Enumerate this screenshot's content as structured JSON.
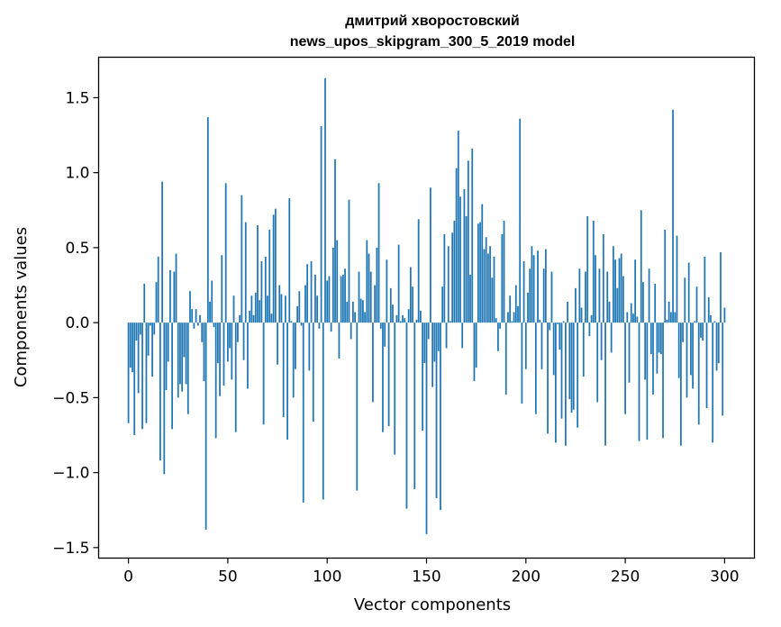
{
  "chart_data": {
    "type": "bar",
    "title_line1": "дмитрий хворостовский",
    "title_line2": "news_upos_skipgram_300_5_2019 model",
    "xlabel": "Vector components",
    "ylabel": "Components values",
    "xlim": [
      -15,
      315
    ],
    "ylim": [
      -1.57,
      1.77
    ],
    "xticks": [
      0,
      50,
      100,
      150,
      200,
      250,
      300
    ],
    "xtick_labels": [
      "0",
      "50",
      "100",
      "150",
      "200",
      "250",
      "300"
    ],
    "yticks": [
      1.5,
      1.0,
      0.5,
      0.0,
      -0.5,
      -1.0,
      -1.5
    ],
    "ytick_labels": [
      "1.5",
      "1.0",
      "0.5",
      "0.0",
      "−0.5",
      "−1.0",
      "−1.5"
    ],
    "grid": false,
    "bar_color": "#1f77b4",
    "values": [
      -0.67,
      -0.3,
      -0.33,
      -0.75,
      -0.12,
      -0.47,
      -0.08,
      -0.71,
      0.26,
      -0.67,
      -0.22,
      -0.02,
      -0.36,
      -0.08,
      0.27,
      0.44,
      -0.92,
      0.94,
      -1.01,
      -0.45,
      -0.26,
      0.35,
      -0.71,
      0.34,
      0.46,
      -0.5,
      -0.41,
      -0.46,
      -0.23,
      -0.41,
      -0.61,
      0.21,
      0.09,
      -0.04,
      0.09,
      -0.02,
      0.05,
      -0.13,
      -0.39,
      -1.38,
      1.37,
      0.14,
      0.28,
      -0.03,
      -0.77,
      -0.27,
      -0.49,
      0.45,
      -0.42,
      0.93,
      -0.26,
      -0.17,
      -0.38,
      0.18,
      -0.73,
      -0.13,
      0.05,
      0.85,
      -0.25,
      0.67,
      -0.44,
      0.08,
      0.18,
      0.05,
      0.2,
      0.65,
      0.15,
      0.41,
      -0.68,
      0.44,
      0.18,
      0.62,
      0.06,
      0.72,
      0.76,
      -0.28,
      0.25,
      0.19,
      -0.63,
      0.18,
      -0.78,
      0.83,
      0.01,
      -0.5,
      -0.31,
      0.11,
      0.21,
      -0.02,
      -1.2,
      0.25,
      0.39,
      -0.32,
      0.41,
      -0.66,
      0.32,
      0.18,
      -0.04,
      1.31,
      -1.18,
      1.63,
      0.28,
      0.31,
      -0.06,
      0.5,
      1.09,
      0.55,
      -0.24,
      0.31,
      0.32,
      0.36,
      0.14,
      0.82,
      -0.11,
      0.14,
      0.07,
      -1.12,
      0.34,
      0.16,
      0.15,
      0.07,
      0.55,
      0.46,
      0.34,
      -0.53,
      0.25,
      0.5,
      0.93,
      -0.04,
      -0.73,
      -0.16,
      0.42,
      -0.69,
      0.23,
      0.12,
      -0.88,
      0.05,
      0.52,
      0.01,
      0.05,
      0.03,
      -1.24,
      0.09,
      0.37,
      0.24,
      -1.11,
      0.02,
      0.69,
      0.08,
      -0.72,
      -0.27,
      -1.41,
      -0.11,
      0.9,
      -0.43,
      -0.26,
      -1.17,
      -0.19,
      -1.25,
      0.24,
      0.59,
      -0.17,
      0.51,
      0.01,
      0.6,
      0.68,
      1.03,
      1.28,
      0.84,
      -0.17,
      0.89,
      0.71,
      1.08,
      0.32,
      1.16,
      -0.39,
      -0.3,
      0.66,
      0.67,
      0.79,
      0.49,
      0.57,
      0.46,
      0.51,
      0.3,
      0.44,
      0.03,
      -0.19,
      -0.04,
      0.59,
      0.68,
      -0.48,
      0.07,
      0.18,
      0.01,
      0.07,
      0.25,
      0.11,
      1.36,
      -0.54,
      0.41,
      -0.31,
      0.2,
      0.36,
      0.51,
      0.45,
      -0.61,
      0.48,
      0.02,
      -0.31,
      0.36,
      0.49,
      -0.74,
      -0.05,
      0.34,
      -0.35,
      -0.8,
      -0.01,
      -0.18,
      -0.64,
      0.01,
      -0.82,
      0.14,
      -0.51,
      -0.6,
      -0.58,
      0.23,
      -0.7,
      0.36,
      0.1,
      -0.36,
      0.34,
      0.71,
      -0.09,
      0.05,
      0.68,
      0.45,
      -0.53,
      0.36,
      -0.25,
      0.59,
      -0.82,
      0.34,
      0.14,
      -0.2,
      0.51,
      0.42,
      0.23,
      0.43,
      0.46,
      0.31,
      -0.61,
      0.07,
      -0.4,
      0.13,
      0.06,
      0.42,
      0.04,
      -0.79,
      0.75,
      0.27,
      -0.38,
      -0.78,
      0.36,
      -0.21,
      -0.48,
      0.26,
      -0.34,
      -0.2,
      -0.21,
      -0.77,
      0.62,
      0.02,
      0.14,
      0.07,
      1.42,
      0.07,
      0.58,
      -0.37,
      -0.82,
      -0.13,
      0.3,
      -0.5,
      0.4,
      -0.35,
      -0.44,
      0.01,
      0.24,
      -0.68,
      -0.1,
      -0.12,
      0.44,
      -0.57,
      0.17,
      0.05,
      -0.8,
      0.01,
      -0.32,
      -0.27,
      0.47,
      -0.62,
      0.1
    ]
  }
}
